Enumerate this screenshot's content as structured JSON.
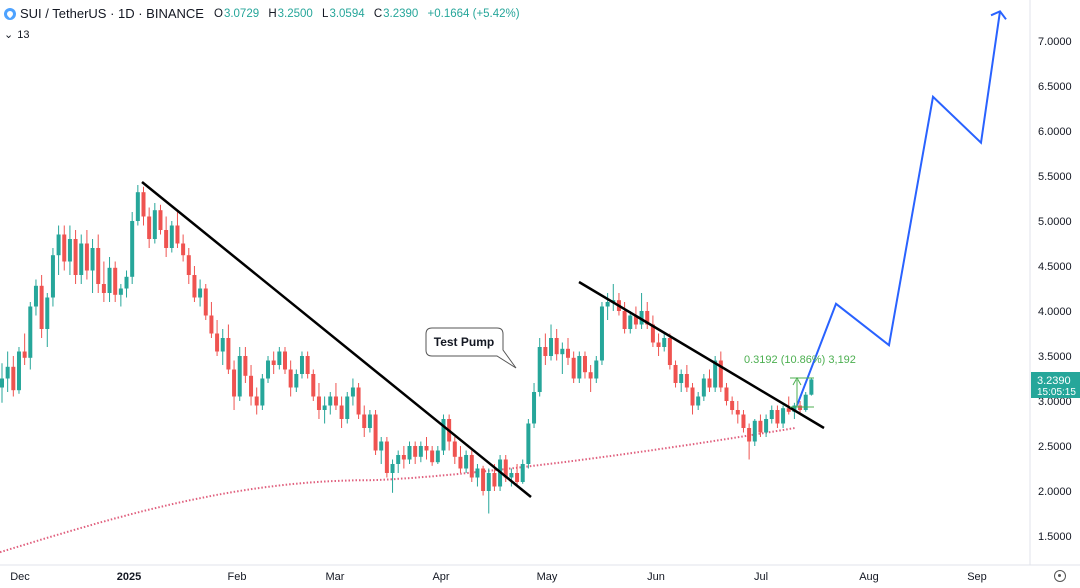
{
  "header": {
    "symbol": "SUI / TetherUS · 1D · BINANCE",
    "open_label": "O",
    "open": "3.0729",
    "high_label": "H",
    "high": "3.2500",
    "low_label": "L",
    "low": "3.0594",
    "close_label": "C",
    "close": "3.2390",
    "change": "+0.1664 (+5.42%)",
    "indicator_value": "13"
  },
  "price_tag": {
    "price": "3.2390",
    "timer": "15:05:15"
  },
  "annotations": {
    "callout": "Test Pump",
    "measure": "0.3192 (10.86%) 3,192"
  },
  "colors": {
    "up": "#26a69a",
    "down": "#ef5350",
    "projection": "#2962ff",
    "ma": "#e0607e",
    "trendline": "#000000"
  },
  "chart_data": {
    "type": "candlestick",
    "yticks": [
      "1.5000",
      "2.0000",
      "2.5000",
      "3.0000",
      "3.5000",
      "4.0000",
      "4.5000",
      "5.0000",
      "5.5000",
      "6.0000",
      "6.5000",
      "7.0000"
    ],
    "ylim": [
      1.3,
      7.4
    ],
    "xticks": [
      "Dec",
      "2025",
      "Feb",
      "Mar",
      "Apr",
      "May",
      "Jun",
      "Jul",
      "Aug",
      "Sep"
    ],
    "ohlc": [
      [
        3.15,
        3.42,
        2.98,
        3.25
      ],
      [
        3.25,
        3.55,
        3.1,
        3.38
      ],
      [
        3.38,
        3.5,
        3.05,
        3.12
      ],
      [
        3.12,
        3.6,
        3.08,
        3.55
      ],
      [
        3.55,
        3.75,
        3.4,
        3.48
      ],
      [
        3.48,
        4.1,
        3.35,
        4.05
      ],
      [
        4.05,
        4.35,
        3.95,
        4.28
      ],
      [
        4.28,
        4.4,
        3.7,
        3.8
      ],
      [
        3.8,
        4.2,
        3.6,
        4.15
      ],
      [
        4.15,
        4.7,
        4.05,
        4.62
      ],
      [
        4.62,
        4.95,
        4.4,
        4.85
      ],
      [
        4.85,
        4.95,
        4.45,
        4.55
      ],
      [
        4.55,
        4.95,
        4.4,
        4.8
      ],
      [
        4.8,
        4.9,
        4.3,
        4.4
      ],
      [
        4.4,
        4.85,
        4.3,
        4.75
      ],
      [
        4.75,
        4.9,
        4.35,
        4.45
      ],
      [
        4.45,
        4.8,
        4.2,
        4.7
      ],
      [
        4.7,
        4.85,
        4.2,
        4.3
      ],
      [
        4.3,
        4.55,
        4.1,
        4.2
      ],
      [
        4.2,
        4.6,
        4.1,
        4.48
      ],
      [
        4.48,
        4.55,
        4.1,
        4.18
      ],
      [
        4.18,
        4.3,
        4.05,
        4.25
      ],
      [
        4.25,
        4.45,
        4.15,
        4.38
      ],
      [
        4.38,
        5.1,
        4.3,
        5.0
      ],
      [
        5.0,
        5.4,
        4.95,
        5.32
      ],
      [
        5.32,
        5.38,
        4.95,
        5.05
      ],
      [
        5.05,
        5.15,
        4.7,
        4.8
      ],
      [
        4.8,
        5.2,
        4.75,
        5.12
      ],
      [
        5.12,
        5.18,
        4.85,
        4.9
      ],
      [
        4.9,
        5.05,
        4.6,
        4.7
      ],
      [
        4.7,
        5.0,
        4.65,
        4.95
      ],
      [
        4.95,
        5.1,
        4.7,
        4.75
      ],
      [
        4.75,
        4.85,
        4.55,
        4.62
      ],
      [
        4.62,
        4.7,
        4.3,
        4.4
      ],
      [
        4.4,
        4.5,
        4.1,
        4.15
      ],
      [
        4.15,
        4.35,
        4.05,
        4.25
      ],
      [
        4.25,
        4.3,
        3.9,
        3.95
      ],
      [
        3.95,
        4.1,
        3.7,
        3.75
      ],
      [
        3.75,
        3.9,
        3.5,
        3.55
      ],
      [
        3.55,
        3.8,
        3.4,
        3.7
      ],
      [
        3.7,
        3.85,
        3.3,
        3.35
      ],
      [
        3.35,
        3.45,
        2.9,
        3.05
      ],
      [
        3.05,
        3.6,
        3.0,
        3.5
      ],
      [
        3.5,
        3.6,
        3.2,
        3.28
      ],
      [
        3.28,
        3.4,
        2.95,
        3.05
      ],
      [
        3.05,
        3.15,
        2.85,
        2.95
      ],
      [
        2.95,
        3.3,
        2.9,
        3.25
      ],
      [
        3.25,
        3.5,
        3.2,
        3.45
      ],
      [
        3.45,
        3.55,
        3.3,
        3.4
      ],
      [
        3.4,
        3.6,
        3.35,
        3.55
      ],
      [
        3.55,
        3.6,
        3.3,
        3.35
      ],
      [
        3.35,
        3.45,
        3.05,
        3.15
      ],
      [
        3.15,
        3.35,
        3.1,
        3.3
      ],
      [
        3.3,
        3.55,
        3.25,
        3.5
      ],
      [
        3.5,
        3.55,
        3.25,
        3.3
      ],
      [
        3.3,
        3.35,
        3.0,
        3.05
      ],
      [
        3.05,
        3.2,
        2.8,
        2.9
      ],
      [
        2.9,
        3.05,
        2.75,
        2.95
      ],
      [
        2.95,
        3.1,
        2.85,
        3.05
      ],
      [
        3.05,
        3.2,
        2.9,
        2.95
      ],
      [
        2.95,
        3.05,
        2.7,
        2.8
      ],
      [
        2.8,
        3.1,
        2.75,
        3.05
      ],
      [
        3.05,
        3.25,
        2.95,
        3.15
      ],
      [
        3.15,
        3.2,
        2.8,
        2.85
      ],
      [
        2.85,
        2.95,
        2.6,
        2.7
      ],
      [
        2.7,
        2.9,
        2.65,
        2.85
      ],
      [
        2.85,
        2.9,
        2.4,
        2.45
      ],
      [
        2.45,
        2.6,
        2.3,
        2.55
      ],
      [
        2.55,
        2.6,
        2.15,
        2.2
      ],
      [
        2.2,
        2.35,
        1.98,
        2.3
      ],
      [
        2.3,
        2.45,
        2.2,
        2.4
      ],
      [
        2.4,
        2.5,
        2.25,
        2.35
      ],
      [
        2.35,
        2.55,
        2.3,
        2.5
      ],
      [
        2.5,
        2.55,
        2.3,
        2.38
      ],
      [
        2.38,
        2.55,
        2.32,
        2.5
      ],
      [
        2.5,
        2.6,
        2.35,
        2.45
      ],
      [
        2.45,
        2.5,
        2.28,
        2.32
      ],
      [
        2.32,
        2.5,
        2.3,
        2.45
      ],
      [
        2.45,
        2.85,
        2.4,
        2.8
      ],
      [
        2.8,
        2.85,
        2.45,
        2.55
      ],
      [
        2.55,
        2.6,
        2.3,
        2.38
      ],
      [
        2.38,
        2.5,
        2.2,
        2.25
      ],
      [
        2.25,
        2.45,
        2.2,
        2.4
      ],
      [
        2.4,
        2.45,
        2.1,
        2.15
      ],
      [
        2.15,
        2.3,
        2.05,
        2.25
      ],
      [
        2.25,
        2.28,
        1.95,
        2.0
      ],
      [
        2.0,
        2.25,
        1.75,
        2.2
      ],
      [
        2.2,
        2.3,
        2.0,
        2.05
      ],
      [
        2.05,
        2.4,
        2.0,
        2.35
      ],
      [
        2.35,
        2.4,
        2.1,
        2.15
      ],
      [
        2.15,
        2.25,
        2.05,
        2.2
      ],
      [
        2.2,
        2.3,
        2.05,
        2.1
      ],
      [
        2.1,
        2.35,
        2.08,
        2.3
      ],
      [
        2.3,
        2.8,
        2.25,
        2.75
      ],
      [
        2.75,
        3.2,
        2.7,
        3.1
      ],
      [
        3.1,
        3.7,
        3.05,
        3.6
      ],
      [
        3.6,
        3.75,
        3.4,
        3.5
      ],
      [
        3.5,
        3.85,
        3.45,
        3.7
      ],
      [
        3.7,
        3.8,
        3.45,
        3.52
      ],
      [
        3.52,
        3.65,
        3.3,
        3.58
      ],
      [
        3.58,
        3.7,
        3.4,
        3.48
      ],
      [
        3.48,
        3.55,
        3.2,
        3.25
      ],
      [
        3.25,
        3.55,
        3.2,
        3.5
      ],
      [
        3.5,
        3.55,
        3.25,
        3.32
      ],
      [
        3.32,
        3.4,
        3.1,
        3.25
      ],
      [
        3.25,
        3.5,
        3.2,
        3.45
      ],
      [
        3.45,
        4.1,
        3.4,
        4.05
      ],
      [
        4.05,
        4.2,
        3.9,
        4.1
      ],
      [
        4.1,
        4.3,
        4.0,
        4.12
      ],
      [
        4.12,
        4.2,
        3.95,
        4.0
      ],
      [
        4.0,
        4.1,
        3.75,
        3.8
      ],
      [
        3.8,
        4.0,
        3.75,
        3.95
      ],
      [
        3.95,
        4.05,
        3.8,
        3.85
      ],
      [
        3.85,
        4.2,
        3.8,
        4.0
      ],
      [
        4.0,
        4.1,
        3.8,
        3.85
      ],
      [
        3.85,
        3.95,
        3.6,
        3.65
      ],
      [
        3.65,
        3.75,
        3.5,
        3.6
      ],
      [
        3.6,
        3.75,
        3.55,
        3.7
      ],
      [
        3.7,
        3.75,
        3.35,
        3.4
      ],
      [
        3.4,
        3.45,
        3.15,
        3.2
      ],
      [
        3.2,
        3.35,
        3.1,
        3.3
      ],
      [
        3.3,
        3.4,
        3.1,
        3.15
      ],
      [
        3.15,
        3.2,
        2.85,
        2.95
      ],
      [
        2.95,
        3.1,
        2.9,
        3.05
      ],
      [
        3.05,
        3.3,
        3.0,
        3.25
      ],
      [
        3.25,
        3.35,
        3.1,
        3.15
      ],
      [
        3.15,
        3.5,
        3.1,
        3.45
      ],
      [
        3.45,
        3.55,
        3.1,
        3.15
      ],
      [
        3.15,
        3.2,
        2.95,
        3.0
      ],
      [
        3.0,
        3.05,
        2.85,
        2.9
      ],
      [
        2.9,
        3.0,
        2.75,
        2.85
      ],
      [
        2.85,
        2.9,
        2.65,
        2.7
      ],
      [
        2.7,
        2.75,
        2.35,
        2.55
      ],
      [
        2.55,
        2.8,
        2.5,
        2.78
      ],
      [
        2.78,
        2.85,
        2.6,
        2.65
      ],
      [
        2.65,
        2.85,
        2.6,
        2.8
      ],
      [
        2.8,
        2.95,
        2.75,
        2.9
      ],
      [
        2.9,
        2.95,
        2.7,
        2.75
      ],
      [
        2.75,
        2.95,
        2.7,
        2.92
      ],
      [
        2.92,
        3.05,
        2.85,
        2.88
      ],
      [
        2.88,
        2.98,
        2.8,
        2.95
      ],
      [
        2.95,
        3.0,
        2.85,
        2.9
      ],
      [
        2.9,
        3.1,
        2.88,
        3.07
      ],
      [
        3.07,
        3.25,
        3.06,
        3.24
      ]
    ],
    "projection": [
      {
        "date": "Jul 12",
        "price": 2.95
      },
      {
        "date": "Jul 23",
        "price": 4.08
      },
      {
        "date": "Aug 4",
        "price": 3.62
      },
      {
        "date": "Aug 13",
        "price": 6.38
      },
      {
        "date": "Aug 30",
        "price": 5.87
      },
      {
        "date": "Sep 7",
        "price": 7.33
      }
    ]
  }
}
